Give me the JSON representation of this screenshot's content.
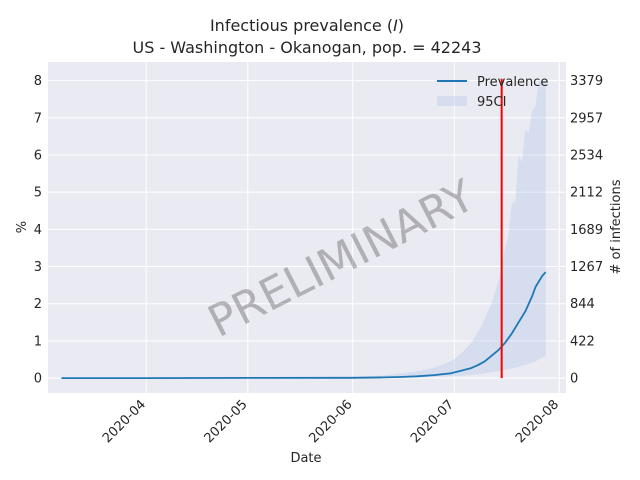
{
  "chart_data": {
    "type": "line",
    "title": "Infectious prevalence (I)",
    "title_prefix": "Infectious prevalence (",
    "title_var": "I",
    "title_suffix": ")",
    "subtitle": "US - Washington - Okanogan, pop. = 42243",
    "xlabel": "Date",
    "ylabel": "%",
    "ylabel_right": "# of infections",
    "watermark": "PRELIMINARY",
    "grid": true,
    "legend_position": "upper-right",
    "ylim": [
      -0.4,
      8.5
    ],
    "xlim": [
      "2020-03-03",
      "2020-08-03"
    ],
    "x_ticks": [
      "2020-04",
      "2020-05",
      "2020-06",
      "2020-07",
      "2020-08"
    ],
    "x_tick_dates": [
      "2020-04-01",
      "2020-05-01",
      "2020-06-01",
      "2020-07-01",
      "2020-08-01"
    ],
    "y_ticks": [
      0,
      1,
      2,
      3,
      4,
      5,
      6,
      7,
      8
    ],
    "y_right_ticks": [
      {
        "value": 0,
        "label": "0"
      },
      {
        "value": 1,
        "label": "422"
      },
      {
        "value": 2,
        "label": "844"
      },
      {
        "value": 3,
        "label": "1267"
      },
      {
        "value": 4,
        "label": "1689"
      },
      {
        "value": 5,
        "label": "2112"
      },
      {
        "value": 6,
        "label": "2534"
      },
      {
        "value": 7,
        "label": "2957"
      },
      {
        "value": 8,
        "label": "3379"
      }
    ],
    "vline_date": "2020-07-15",
    "series": [
      {
        "name": "Prevalence",
        "color": "#1f77b4",
        "points": [
          [
            "2020-03-07",
            0.0
          ],
          [
            "2020-04-01",
            0.0
          ],
          [
            "2020-05-01",
            0.005
          ],
          [
            "2020-06-01",
            0.01
          ],
          [
            "2020-06-10",
            0.02
          ],
          [
            "2020-06-15",
            0.03
          ],
          [
            "2020-06-20",
            0.05
          ],
          [
            "2020-06-25",
            0.08
          ],
          [
            "2020-06-30",
            0.13
          ],
          [
            "2020-07-03",
            0.2
          ],
          [
            "2020-07-06",
            0.27
          ],
          [
            "2020-07-08",
            0.35
          ],
          [
            "2020-07-10",
            0.45
          ],
          [
            "2020-07-12",
            0.6
          ],
          [
            "2020-07-14",
            0.75
          ],
          [
            "2020-07-16",
            0.95
          ],
          [
            "2020-07-18",
            1.2
          ],
          [
            "2020-07-20",
            1.5
          ],
          [
            "2020-07-22",
            1.8
          ],
          [
            "2020-07-24",
            2.2
          ],
          [
            "2020-07-25",
            2.45
          ],
          [
            "2020-07-27",
            2.75
          ],
          [
            "2020-07-28",
            2.85
          ]
        ]
      }
    ],
    "band": {
      "name": "95CI",
      "color": "#aec7e8",
      "opacity": 0.35,
      "lower": [
        [
          "2020-03-07",
          0.0
        ],
        [
          "2020-06-01",
          0.0
        ],
        [
          "2020-06-20",
          0.02
        ],
        [
          "2020-07-01",
          0.05
        ],
        [
          "2020-07-08",
          0.1
        ],
        [
          "2020-07-15",
          0.2
        ],
        [
          "2020-07-20",
          0.3
        ],
        [
          "2020-07-25",
          0.45
        ],
        [
          "2020-07-28",
          0.6
        ]
      ],
      "upper": [
        [
          "2020-03-07",
          0.0
        ],
        [
          "2020-06-01",
          0.04
        ],
        [
          "2020-06-10",
          0.07
        ],
        [
          "2020-06-20",
          0.18
        ],
        [
          "2020-06-25",
          0.28
        ],
        [
          "2020-06-30",
          0.45
        ],
        [
          "2020-07-03",
          0.65
        ],
        [
          "2020-07-06",
          0.95
        ],
        [
          "2020-07-09",
          1.4
        ],
        [
          "2020-07-12",
          2.0
        ],
        [
          "2020-07-14",
          2.6
        ],
        [
          "2020-07-15",
          3.0
        ],
        [
          "2020-07-16",
          3.5
        ],
        [
          "2020-07-17",
          3.8
        ],
        [
          "2020-07-18",
          4.7
        ],
        [
          "2020-07-19",
          4.7
        ],
        [
          "2020-07-20",
          6.0
        ],
        [
          "2020-07-21",
          5.8
        ],
        [
          "2020-07-22",
          6.7
        ],
        [
          "2020-07-23",
          6.6
        ],
        [
          "2020-07-24",
          7.2
        ],
        [
          "2020-07-25",
          7.3
        ],
        [
          "2020-07-26",
          8.0
        ],
        [
          "2020-07-28",
          8.0
        ]
      ]
    }
  }
}
